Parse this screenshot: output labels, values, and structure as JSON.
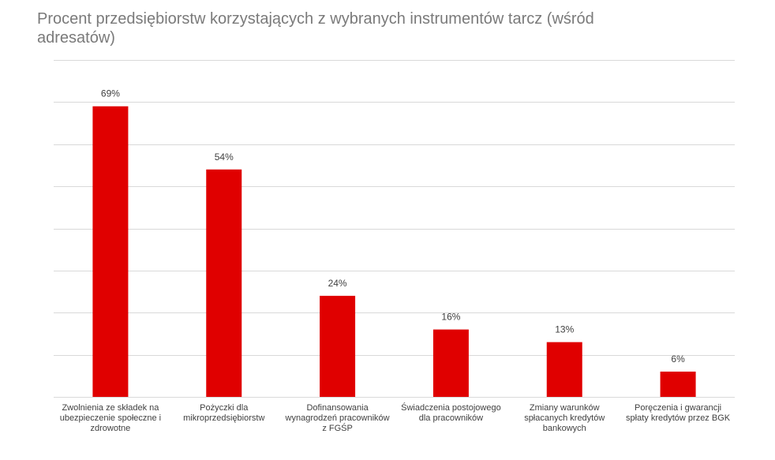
{
  "chart_data": {
    "type": "bar",
    "title": "Procent przedsiębiorstw korzystających z wybranych instrumentów tarcz (wśród adresatów)",
    "xlabel": "",
    "ylabel": "",
    "ylim": [
      0,
      80
    ],
    "grid": true,
    "legend": "none",
    "colors": {
      "bar": "#e00000",
      "grid": "#d9d9d9",
      "title": "#7a7a7a",
      "text": "#404040"
    },
    "categories": [
      [
        "Zwolnienia ze składek na",
        "ubezpieczenie społeczne i",
        "zdrowotne"
      ],
      [
        "Pożyczki dla",
        "mikroprzedsiębiorstw"
      ],
      [
        "Dofinansowania",
        "wynagrodzeń pracowników",
        "z FGŚP"
      ],
      [
        "Świadczenia postojowego",
        "dla pracowników"
      ],
      [
        "Zmiany warunków",
        "spłacanych kredytów",
        "bankowych"
      ],
      [
        "Poręczenia i gwarancji",
        "spłaty kredytów przez BGK"
      ]
    ],
    "values": [
      69,
      54,
      24,
      16,
      13,
      6
    ],
    "value_labels": [
      "69%",
      "54%",
      "24%",
      "16%",
      "13%",
      "6%"
    ]
  }
}
